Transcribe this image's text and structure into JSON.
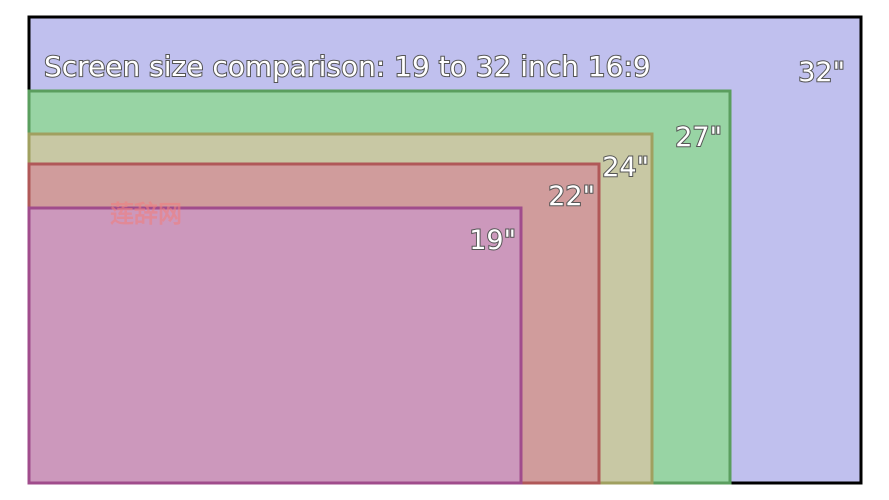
{
  "title": "Screen size comparison: 19 to 32 inch 16:9",
  "watermark": "莲辞网",
  "screens": [
    {
      "label": "32\""
    },
    {
      "label": "27\""
    },
    {
      "label": "24\""
    },
    {
      "label": "22\""
    },
    {
      "label": "19\""
    }
  ]
}
